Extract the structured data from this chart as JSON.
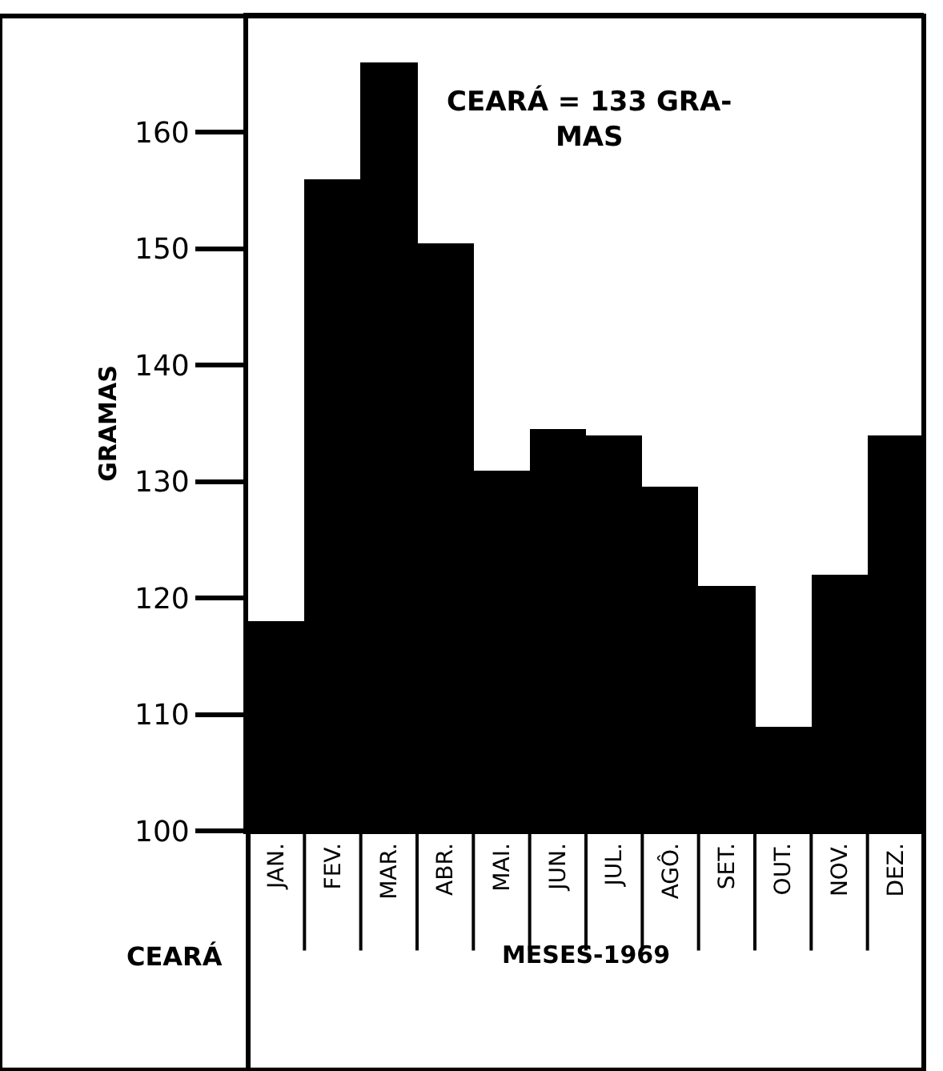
{
  "chart_data": {
    "type": "bar",
    "ylabel": "GRAMAS",
    "xlabel": "MESES-1969",
    "categories": [
      "JAN.",
      "FEV.",
      "MAR.",
      "ABR.",
      "MAI.",
      "JUN.",
      "JUL.",
      "AGÔ.",
      "SET.",
      "OUT.",
      "NOV.",
      "DEZ."
    ],
    "values": [
      118,
      156,
      166,
      150.5,
      131,
      134.5,
      134,
      129.5,
      121,
      109,
      122,
      134
    ],
    "color": "#000000",
    "ylim": [
      100,
      170
    ],
    "yticks": [
      100,
      110,
      120,
      130,
      140,
      150,
      160
    ],
    "annotations": [
      "CEARÁ = 133 GRA-\nMAS",
      "CEARÁ"
    ]
  }
}
